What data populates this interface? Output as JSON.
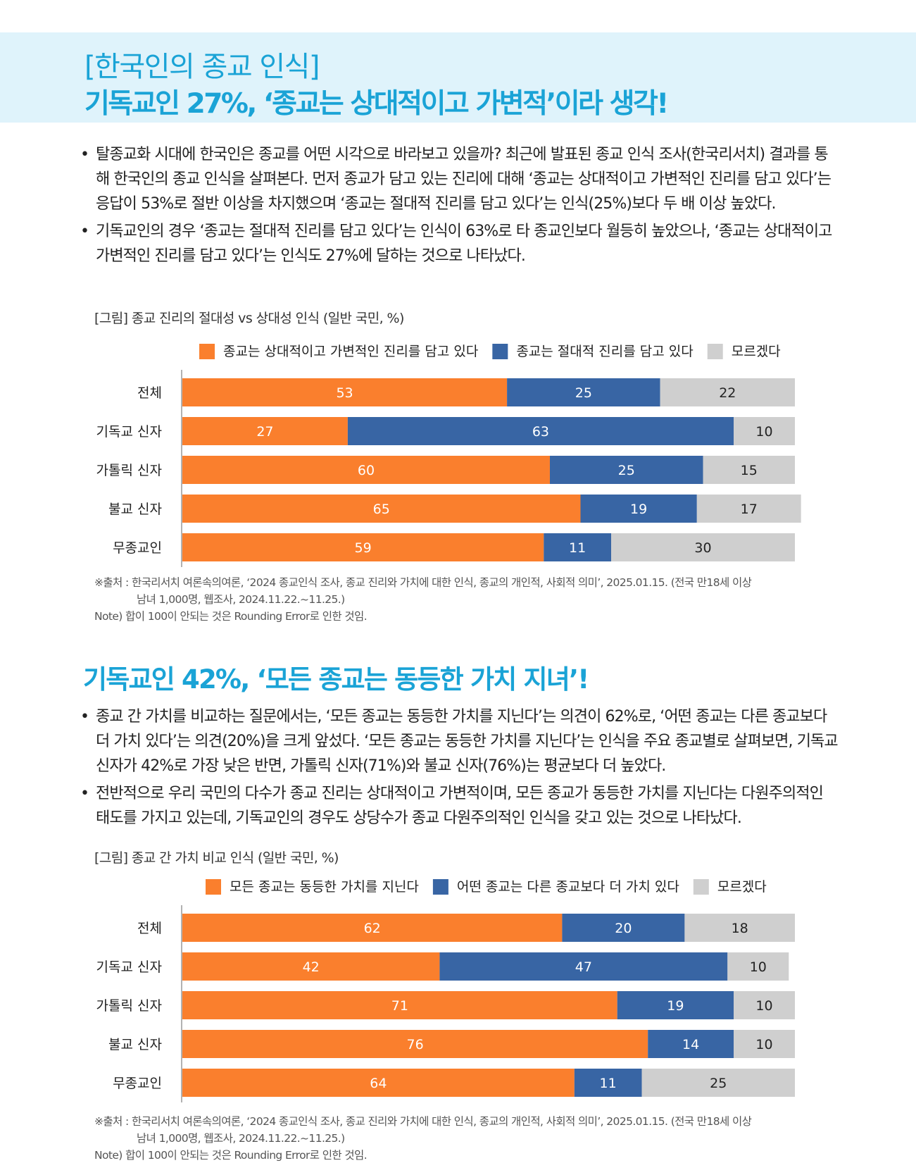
{
  "header": {
    "line1": "[한국인의 종교 인식]",
    "line2": "기독교인 27%, ‘종교는 상대적이고 가변적’이라 생각!"
  },
  "section1": {
    "bullets": [
      "탈종교화 시대에 한국인은 종교를 어떤 시각으로 바라보고 있을까? 최근에 발표된 종교 인식 조사(한국리서치) 결과를 통해 한국인의 종교 인식을 살펴본다. 먼저 종교가 담고 있는 진리에 대해 ‘종교는 상대적이고 가변적인 진리를 담고 있다’는 응답이 53%로 절반 이상을 차지했으며 ‘종교는 절대적 진리를 담고 있다’는 인식(25%)보다 두 배 이상 높았다.",
      "기독교인의 경우 ‘종교는 절대적 진리를 담고 있다’는 인식이 63%로 타 종교인보다 월등히 높았으나, ‘종교는 상대적이고 가변적인 진리를 담고 있다’는 인식도 27%에 달하는 것으로 나타났다."
    ],
    "figure_caption": "[그림] 종교 진리의 절대성 vs 상대성 인식 (일반 국민, %)",
    "source_line1": "※출처 : 한국리서치 여론속의여론, ‘2024 종교인식 조사, 종교 진리와 가치에 대한 인식, 종교의 개인적, 사회적 의미’, 2025.01.15. (전국 만18세 이상",
    "source_line2": "남녀 1,000명, 웹조사, 2024.11.22.~11.25.)",
    "note": "Note) 합이 100이 안되는 것은 Rounding Error로 인한 것임."
  },
  "section2": {
    "title": "기독교인 42%, ‘모든 종교는 동등한 가치 지녀’!",
    "bullets": [
      "종교 간 가치를 비교하는 질문에서는, ‘모든 종교는 동등한 가치를 지닌다’는 의견이 62%로, ‘어떤 종교는 다른 종교보다 더 가치 있다’는 의견(20%)을 크게 앞섰다. ‘모든 종교는 동등한 가치를 지닌다’는 인식을 주요 종교별로 살펴보면, 기독교 신자가 42%로 가장 낮은 반면, 가톨릭 신자(71%)와 불교 신자(76%)는 평균보다 더 높았다.",
      "전반적으로 우리 국민의 다수가 종교 진리는 상대적이고 가변적이며, 모든 종교가 동등한 가치를 지닌다는 다원주의적인 태도를 가지고 있는데, 기독교인의 경우도 상당수가 종교 다원주의적인 인식을 갖고 있는 것으로 나타났다."
    ],
    "figure_caption": "[그림] 종교 간 가치 비교 인식 (일반 국민, %)",
    "source_line1": "※출처 : 한국리서치 여론속의여론, ‘2024 종교인식 조사, 종교 진리와 가치에 대한 인식, 종교의 개인적, 사회적 의미’, 2025.01.15. (전국 만18세 이상",
    "source_line2": "남녀 1,000명, 웹조사, 2024.11.22.~11.25.)",
    "note": "Note) 합이 100이 안되는 것은 Rounding Error로 인한 것임."
  },
  "colors": {
    "orange": "#fa7f2d",
    "blue": "#3865a4",
    "gray": "#cfcfcf",
    "accent": "#1aa3d6",
    "banner_bg": "#dff3fb"
  },
  "chart_data": [
    {
      "type": "bar",
      "orientation": "horizontal",
      "stacked": true,
      "categories": [
        "전체",
        "기독교 신자",
        "가톨릭 신자",
        "불교 신자",
        "무종교인"
      ],
      "series": [
        {
          "name": "종교는 상대적이고 가변적인 진리를 담고 있다",
          "color": "#fa7f2d",
          "values": [
            53,
            27,
            60,
            65,
            59
          ]
        },
        {
          "name": "종교는 절대적 진리를 담고 있다",
          "color": "#3865a4",
          "values": [
            25,
            63,
            25,
            19,
            11
          ]
        },
        {
          "name": "모르겠다",
          "color": "#cfcfcf",
          "values": [
            22,
            10,
            15,
            17,
            30
          ]
        }
      ],
      "legend": "top",
      "data_labels": true
    },
    {
      "type": "bar",
      "orientation": "horizontal",
      "stacked": true,
      "categories": [
        "전체",
        "기독교 신자",
        "가톨릭 신자",
        "불교 신자",
        "무종교인"
      ],
      "series": [
        {
          "name": "모든 종교는 동등한 가치를 지닌다",
          "color": "#fa7f2d",
          "values": [
            62,
            42,
            71,
            76,
            64
          ]
        },
        {
          "name": "어떤 종교는 다른 종교보다 더 가치 있다",
          "color": "#3865a4",
          "values": [
            20,
            47,
            19,
            14,
            11
          ]
        },
        {
          "name": "모르겠다",
          "color": "#cfcfcf",
          "values": [
            18,
            10,
            10,
            10,
            25
          ]
        }
      ],
      "legend": "top",
      "data_labels": true
    }
  ]
}
